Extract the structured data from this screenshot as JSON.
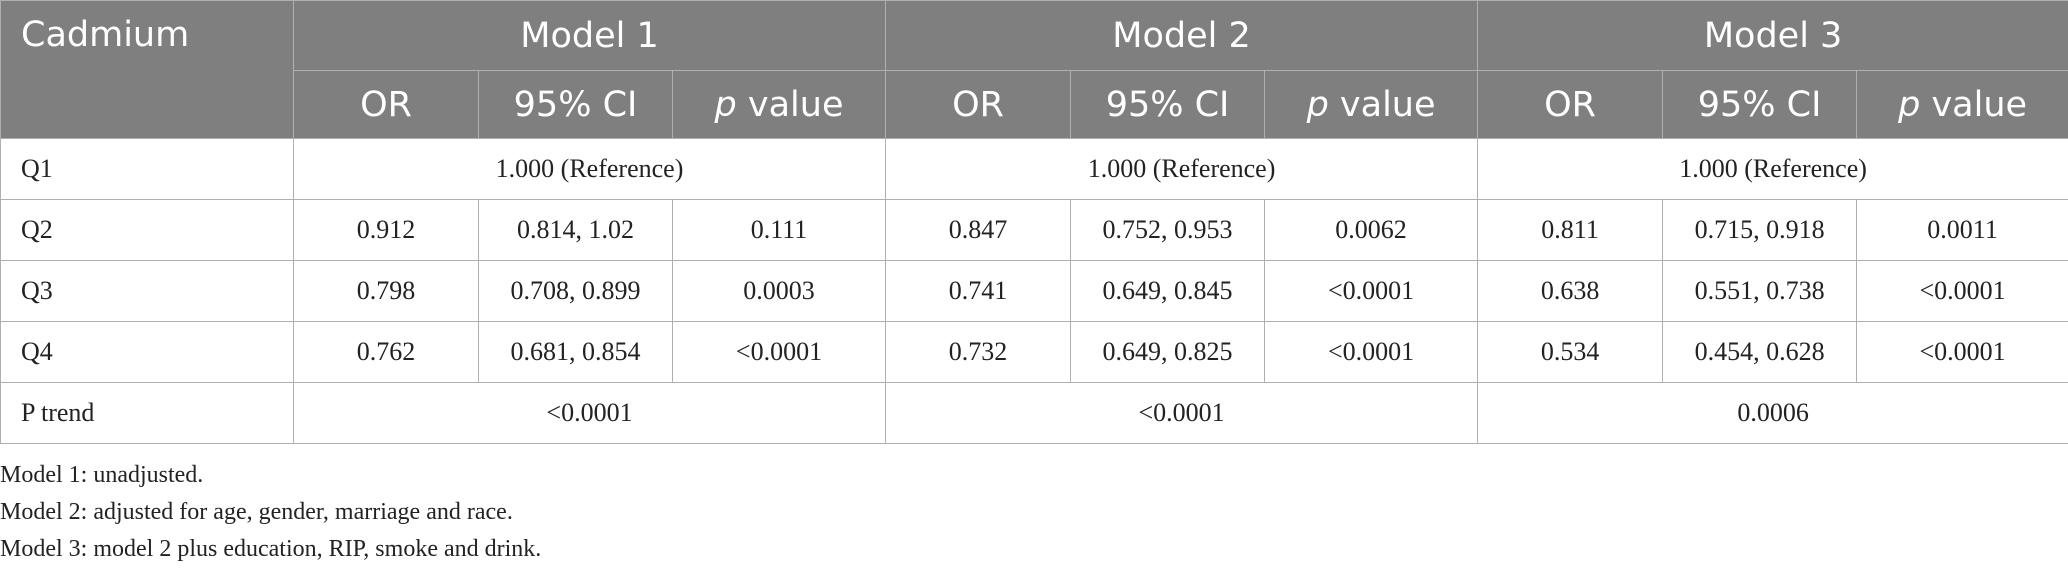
{
  "header": {
    "row_label": "Cadmium",
    "models": [
      "Model 1",
      "Model 2",
      "Model 3"
    ],
    "sub": {
      "or": "OR",
      "ci": "95% CI",
      "p_italic": "p",
      "p_rest": " value"
    }
  },
  "rows": [
    {
      "label": "Q1",
      "merged": true,
      "cells": [
        "1.000 (Reference)",
        "1.000 (Reference)",
        "1.000 (Reference)"
      ]
    },
    {
      "label": "Q2",
      "merged": false,
      "cells": [
        "0.912",
        "0.814, 1.02",
        "0.111",
        "0.847",
        "0.752, 0.953",
        "0.0062",
        "0.811",
        "0.715, 0.918",
        "0.0011"
      ]
    },
    {
      "label": "Q3",
      "merged": false,
      "cells": [
        "0.798",
        "0.708, 0.899",
        "0.0003",
        "0.741",
        "0.649, 0.845",
        "<0.0001",
        "0.638",
        "0.551, 0.738",
        "<0.0001"
      ]
    },
    {
      "label": "Q4",
      "merged": false,
      "cells": [
        "0.762",
        "0.681, 0.854",
        "<0.0001",
        "0.732",
        "0.649, 0.825",
        "<0.0001",
        "0.534",
        "0.454, 0.628",
        "<0.0001"
      ]
    },
    {
      "label": "P trend",
      "merged": true,
      "cells": [
        "<0.0001",
        "<0.0001",
        "0.0006"
      ]
    }
  ],
  "notes": [
    "Model 1: unadjusted.",
    "Model 2: adjusted for age, gender, marriage and race.",
    "Model 3: model 2 plus education, RIP, smoke and drink."
  ]
}
